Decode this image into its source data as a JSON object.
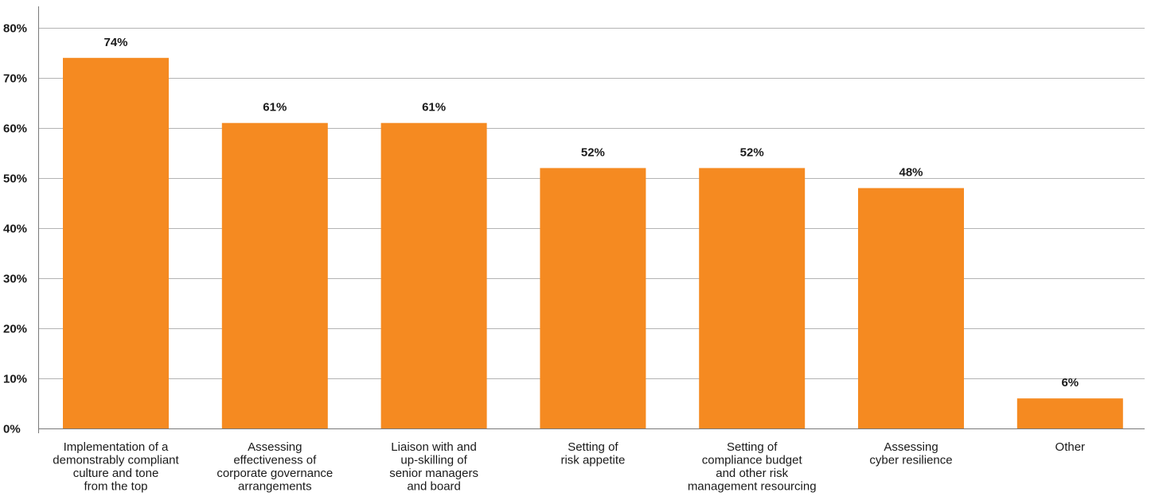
{
  "chart_data": {
    "type": "bar",
    "categories": [
      [
        "Implementation of a",
        "demonstrably compliant",
        "culture and tone",
        "from the top"
      ],
      [
        "Assessing",
        "effectiveness of",
        "corporate governance",
        "arrangements"
      ],
      [
        "Liaison with and",
        "up-skilling of",
        "senior managers",
        "and board"
      ],
      [
        "Setting of",
        "risk appetite"
      ],
      [
        "Setting of",
        "compliance budget",
        "and other risk",
        "management resourcing"
      ],
      [
        "Assessing",
        "cyber resilience"
      ],
      [
        "Other"
      ]
    ],
    "values": [
      74,
      61,
      61,
      52,
      52,
      48,
      6
    ],
    "value_labels": [
      "74%",
      "61%",
      "61%",
      "52%",
      "52%",
      "48%",
      "6%"
    ],
    "ylim": [
      0,
      80
    ],
    "yticks": [
      0,
      10,
      20,
      30,
      40,
      50,
      60,
      70,
      80
    ],
    "ytick_labels": [
      "0%",
      "10%",
      "20%",
      "30%",
      "40%",
      "50%",
      "60%",
      "70%",
      "80%"
    ],
    "grid": true,
    "bar_color": "#f58a21",
    "title": "",
    "xlabel": "",
    "ylabel": ""
  }
}
